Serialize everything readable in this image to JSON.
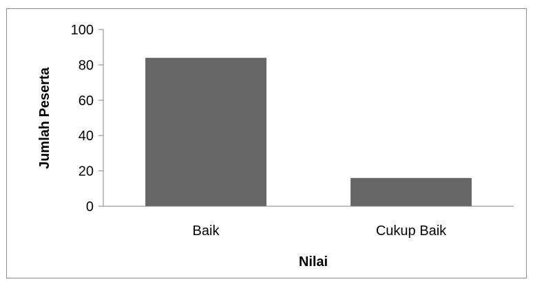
{
  "chart_data": {
    "type": "bar",
    "categories": [
      "Baik",
      "Cukup Baik"
    ],
    "values": [
      84,
      16
    ],
    "title": "",
    "xlabel": "Nilai",
    "ylabel": "Jumlah Peserta",
    "ylim": [
      0,
      100
    ],
    "yticks": [
      0,
      20,
      40,
      60,
      80,
      100
    ],
    "grid": false,
    "legend": "none",
    "bar_color": "#666666",
    "axis_color": "#868686"
  }
}
